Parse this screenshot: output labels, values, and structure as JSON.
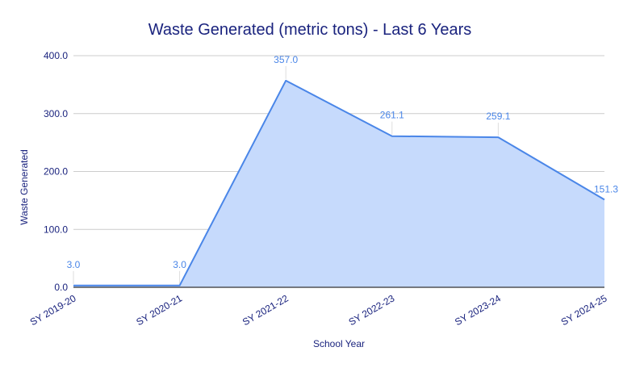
{
  "chart_data": {
    "type": "area",
    "title": "Waste Generated (metric tons) - Last 6 Years",
    "xlabel": "School Year",
    "ylabel": "Waste Generated",
    "categories": [
      "SY 2019-20",
      "SY 2020-21",
      "SY 2021-22",
      "SY 2022-23",
      "SY 2023-24",
      "SY 2024-25"
    ],
    "series": [
      {
        "name": "Waste Generated",
        "values": [
          3.0,
          3.0,
          357.0,
          261.1,
          259.1,
          151.3
        ],
        "data_labels": [
          "3.0",
          "3.0",
          "357.0",
          "261.1",
          "259.1",
          "151.3"
        ]
      }
    ],
    "ylim": [
      0,
      400
    ],
    "yticks": [
      0,
      100,
      200,
      300,
      400
    ],
    "ytick_labels": [
      "0.0",
      "100.0",
      "200.0",
      "300.0",
      "400.0"
    ],
    "grid": true,
    "legend": "none",
    "colors": {
      "line": "#4a86e8",
      "fill": "#c6dafc",
      "text": "#1a237e",
      "data_label": "#4a86e8",
      "grid": "#cccccc"
    }
  }
}
